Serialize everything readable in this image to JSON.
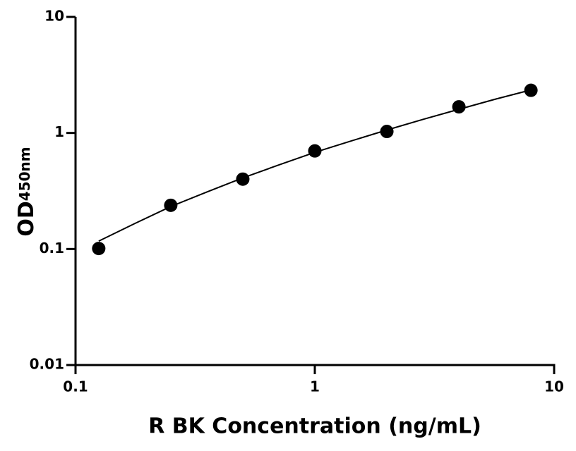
{
  "chart_data": {
    "type": "scatter",
    "x_label": "R BK Concentration (ng/mL)",
    "y_label": "OD",
    "y_label_sub": "450nm",
    "x": [
      0.125,
      0.25,
      0.5,
      1,
      2,
      4,
      8
    ],
    "values": [
      0.101,
      0.238,
      0.4,
      0.7,
      1.03,
      1.68,
      2.33
    ],
    "color": "#000000",
    "curve": {
      "x": [
        0.125,
        0.177,
        0.25,
        0.354,
        0.5,
        0.707,
        1,
        1.41,
        2,
        2.83,
        4,
        5.66,
        8
      ],
      "values": [
        0.117,
        0.166,
        0.232,
        0.31,
        0.41,
        0.53,
        0.68,
        0.85,
        1.06,
        1.31,
        1.6,
        1.95,
        2.35
      ]
    },
    "xscale": "log",
    "yscale": "log",
    "xlim": [
      0.1,
      10
    ],
    "ylim": [
      0.01,
      10
    ],
    "xticks": [
      0.1,
      1,
      10
    ],
    "yticks": [
      0.01,
      0.1,
      1,
      10
    ]
  }
}
